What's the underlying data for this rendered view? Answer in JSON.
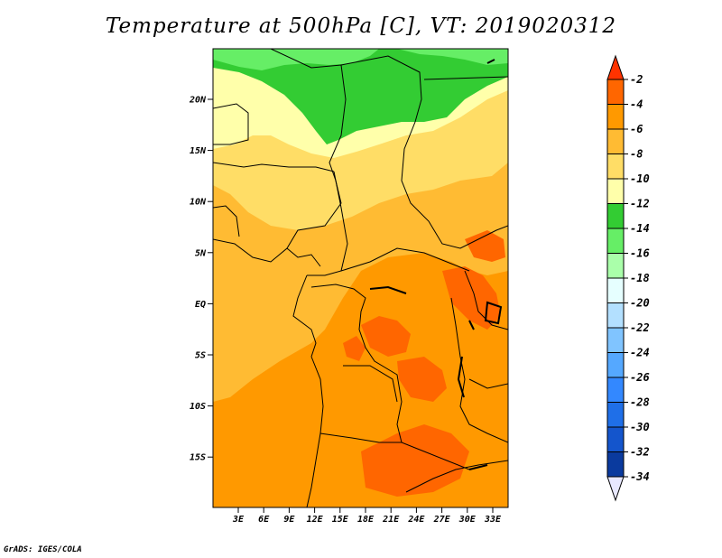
{
  "title": "Temperature at 500hPa [C], VT: 2019020312",
  "credit": "GrADS: IGES/COLA",
  "map": {
    "lat_labels": [
      "20N",
      "15N",
      "10N",
      "5N",
      "EQ",
      "5S",
      "10S",
      "15S"
    ],
    "lon_labels": [
      "3E",
      "6E",
      "9E",
      "12E",
      "15E",
      "18E",
      "21E",
      "24E",
      "27E",
      "30E",
      "33E"
    ]
  },
  "colorbar": {
    "labels": [
      "-2",
      "-4",
      "-6",
      "-8",
      "-10",
      "-12",
      "-14",
      "-16",
      "-18",
      "-20",
      "-22",
      "-24",
      "-26",
      "-28",
      "-30",
      "-32",
      "-34"
    ],
    "colors": [
      "#ff3300",
      "#ff6600",
      "#ff9900",
      "#ffbb33",
      "#ffdd66",
      "#ffffaa",
      "#33cc33",
      "#66ee66",
      "#aaffaa",
      "#e6ffff",
      "#b3e0ff",
      "#80c4ff",
      "#55a8ff",
      "#3388ff",
      "#1f6fe8",
      "#1455cc",
      "#0a3a9e",
      "#080c6e",
      "#e8e8ff"
    ]
  },
  "chart_data": {
    "type": "heatmap",
    "title": "Temperature at 500hPa [C], VT: 2019020312",
    "variable": "Temperature at 500hPa",
    "units": "C",
    "valid_time": "2019020312",
    "x_ticks": [
      "3E",
      "6E",
      "9E",
      "12E",
      "15E",
      "18E",
      "21E",
      "24E",
      "27E",
      "30E",
      "33E"
    ],
    "y_ticks": [
      "20N",
      "15N",
      "10N",
      "5N",
      "EQ",
      "5S",
      "10S",
      "15S"
    ],
    "lon_range": [
      0,
      35
    ],
    "lat_range": [
      -20,
      24.5
    ],
    "levels": [
      -2,
      -4,
      -6,
      -8,
      -10,
      -12,
      -14,
      -16,
      -18,
      -20,
      -22,
      -24,
      -26,
      -28,
      -30,
      -32,
      -34
    ]
  }
}
